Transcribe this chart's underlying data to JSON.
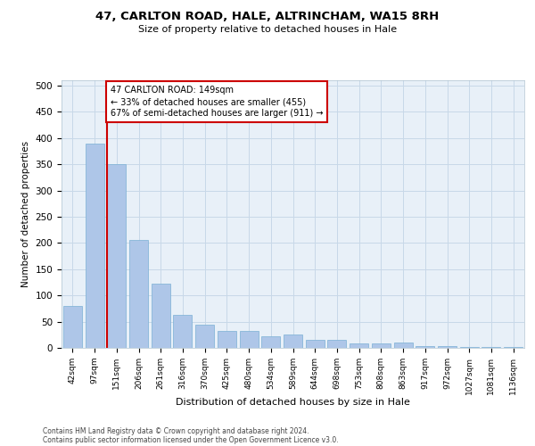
{
  "title1": "47, CARLTON ROAD, HALE, ALTRINCHAM, WA15 8RH",
  "title2": "Size of property relative to detached houses in Hale",
  "xlabel": "Distribution of detached houses by size in Hale",
  "ylabel": "Number of detached properties",
  "categories": [
    "42sqm",
    "97sqm",
    "151sqm",
    "206sqm",
    "261sqm",
    "316sqm",
    "370sqm",
    "425sqm",
    "480sqm",
    "534sqm",
    "589sqm",
    "644sqm",
    "698sqm",
    "753sqm",
    "808sqm",
    "863sqm",
    "917sqm",
    "972sqm",
    "1027sqm",
    "1081sqm",
    "1136sqm"
  ],
  "values": [
    80,
    390,
    350,
    205,
    122,
    63,
    45,
    32,
    32,
    22,
    25,
    15,
    15,
    8,
    8,
    10,
    3,
    3,
    2,
    2,
    1
  ],
  "bar_color": "#aec6e8",
  "bar_edge_color": "#7ab0d4",
  "grid_color": "#c8d8e8",
  "background_color": "#e8f0f8",
  "vline_x_index": 2,
  "vline_color": "#cc0000",
  "annotation_text": "47 CARLTON ROAD: 149sqm\n← 33% of detached houses are smaller (455)\n67% of semi-detached houses are larger (911) →",
  "annotation_box_color": "#ffffff",
  "annotation_box_edge": "#cc0000",
  "footer1": "Contains HM Land Registry data © Crown copyright and database right 2024.",
  "footer2": "Contains public sector information licensed under the Open Government Licence v3.0.",
  "ylim": [
    0,
    510
  ],
  "yticks": [
    0,
    50,
    100,
    150,
    200,
    250,
    300,
    350,
    400,
    450,
    500
  ]
}
